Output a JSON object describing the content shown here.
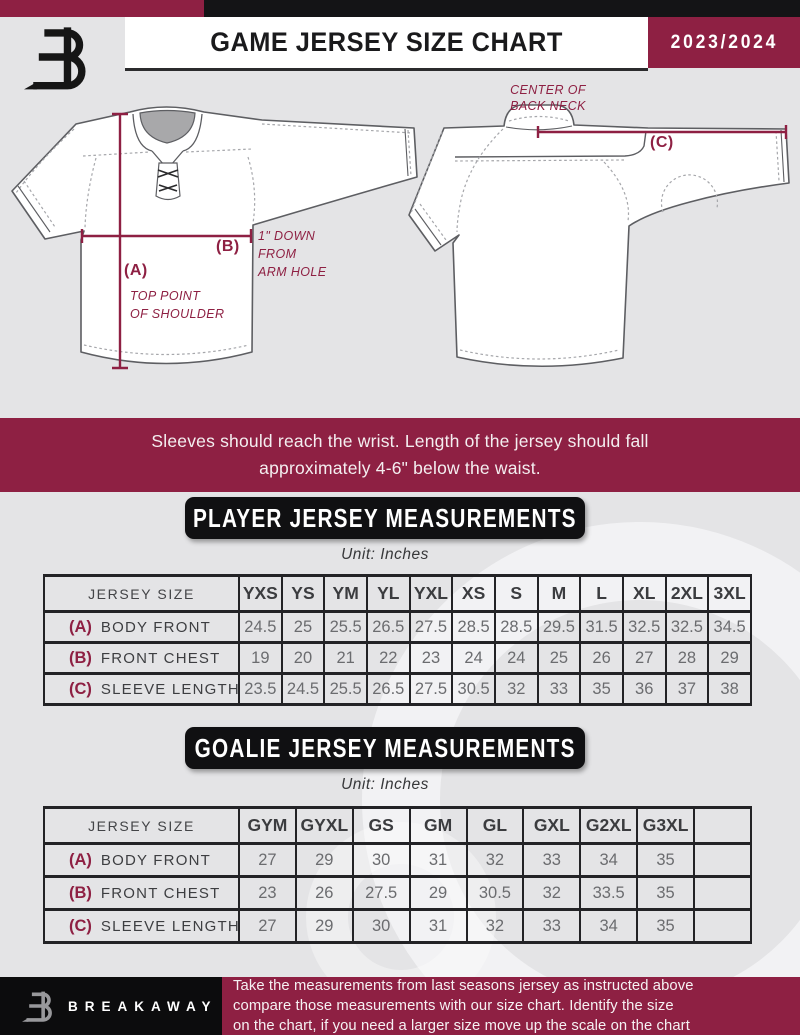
{
  "header": {
    "title": "GAME JERSEY SIZE CHART",
    "season": "2023/2024",
    "logo": "breakaway-b-logo"
  },
  "diagram": {
    "front": {
      "a_key": "(A)",
      "a_text": "TOP POINT\nOF SHOULDER",
      "b_key": "(B)",
      "b_text": "1\" DOWN\nFROM\nARM HOLE"
    },
    "back": {
      "c_key": "(C)",
      "c_text": "CENTER OF\nBACK NECK"
    }
  },
  "note": "Sleeves should reach the wrist. Length of the jersey should fall\napproximately 4-6\" below the waist.",
  "player_table": {
    "heading": "PLAYER JERSEY MEASUREMENTS",
    "unit": "Unit: Inches",
    "size_header": "JERSEY SIZE",
    "sizes": [
      "YXS",
      "YS",
      "YM",
      "YL",
      "YXL",
      "XS",
      "S",
      "M",
      "L",
      "XL",
      "2XL",
      "3XL"
    ],
    "rows": [
      {
        "key": "(A)",
        "label": "BODY FRONT",
        "values": [
          "24.5",
          "25",
          "25.5",
          "26.5",
          "27.5",
          "28.5",
          "28.5",
          "29.5",
          "31.5",
          "32.5",
          "32.5",
          "34.5"
        ]
      },
      {
        "key": "(B)",
        "label": "FRONT CHEST",
        "values": [
          "19",
          "20",
          "21",
          "22",
          "23",
          "24",
          "24",
          "25",
          "26",
          "27",
          "28",
          "29"
        ]
      },
      {
        "key": "(C)",
        "label": "SLEEVE LENGTH",
        "values": [
          "23.5",
          "24.5",
          "25.5",
          "26.5",
          "27.5",
          "30.5",
          "32",
          "33",
          "35",
          "36",
          "37",
          "38"
        ]
      }
    ]
  },
  "goalie_table": {
    "heading": "GOALIE JERSEY MEASUREMENTS",
    "unit": "Unit: Inches",
    "size_header": "JERSEY SIZE",
    "sizes": [
      "GYM",
      "GYXL",
      "GS",
      "GM",
      "GL",
      "GXL",
      "G2XL",
      "G3XL",
      ""
    ],
    "rows": [
      {
        "key": "(A)",
        "label": "BODY FRONT",
        "values": [
          "27",
          "29",
          "30",
          "31",
          "32",
          "33",
          "34",
          "35",
          ""
        ]
      },
      {
        "key": "(B)",
        "label": "FRONT CHEST",
        "values": [
          "23",
          "26",
          "27.5",
          "29",
          "30.5",
          "32",
          "33.5",
          "35",
          ""
        ]
      },
      {
        "key": "(C)",
        "label": "SLEEVE LENGTH",
        "values": [
          "27",
          "29",
          "30",
          "31",
          "32",
          "33",
          "34",
          "35",
          ""
        ]
      }
    ]
  },
  "footer": {
    "brand": "BREAKAWAY",
    "text": "Take the measurements from last seasons jersey as instructed above\ncompare those measurements  with our size chart. Identify the size\non the chart, if you need a larger size move up the scale on the chart"
  },
  "colors": {
    "maroon": "#8e2043",
    "black": "#141416",
    "background": "#e4e4e6",
    "table_number_gray": "#6b6c6f",
    "label_gray": "#3d3e41"
  }
}
